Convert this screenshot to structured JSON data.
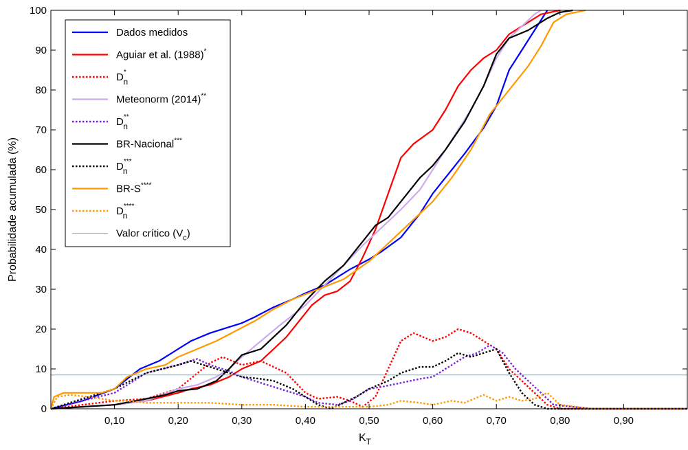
{
  "chart_data": {
    "type": "line",
    "xlabel_main": "K",
    "xlabel_sub": "T",
    "ylabel": "Probabilidade acumulada (%)",
    "xlim": [
      0,
      1
    ],
    "ylim": [
      0,
      100
    ],
    "x_ticks": [
      0.1,
      0.2,
      0.3,
      0.4,
      0.5,
      0.6,
      0.7,
      0.8,
      0.9
    ],
    "x_tick_labels": [
      "0,10",
      "0,20",
      "0,30",
      "0,40",
      "0,50",
      "0,60",
      "0,70",
      "0,80",
      "0,90"
    ],
    "y_ticks": [
      0,
      10,
      20,
      30,
      40,
      50,
      60,
      70,
      80,
      90,
      100
    ],
    "y_tick_labels": [
      "0",
      "10",
      "20",
      "30",
      "40",
      "50",
      "60",
      "70",
      "80",
      "90",
      "100"
    ],
    "grid": false,
    "legend_position": "top-left",
    "series": [
      {
        "name": "Dados medidos",
        "name_sup": "",
        "name_sub": "",
        "color": "#0000ff",
        "style": "solid",
        "x": [
          0,
          0.05,
          0.1,
          0.12,
          0.14,
          0.17,
          0.2,
          0.22,
          0.25,
          0.28,
          0.3,
          0.32,
          0.35,
          0.38,
          0.4,
          0.43,
          0.45,
          0.47,
          0.5,
          0.52,
          0.55,
          0.58,
          0.6,
          0.62,
          0.65,
          0.68,
          0.7,
          0.72,
          0.74,
          0.76,
          0.78
        ],
        "y": [
          0,
          2,
          5,
          7.5,
          10,
          12,
          15,
          17,
          19,
          20.5,
          21.5,
          23,
          25.5,
          27.5,
          29,
          31,
          33,
          35,
          37.5,
          39.5,
          43,
          49,
          54,
          58,
          64,
          70.5,
          76,
          85,
          90,
          95,
          100
        ]
      },
      {
        "name": "Aguiar et al. (1988)",
        "name_sup": "*",
        "name_sub": "",
        "color": "#ff0000",
        "style": "solid",
        "x": [
          0,
          0.1,
          0.15,
          0.2,
          0.22,
          0.25,
          0.28,
          0.3,
          0.33,
          0.35,
          0.37,
          0.39,
          0.41,
          0.43,
          0.45,
          0.47,
          0.49,
          0.51,
          0.53,
          0.55,
          0.57,
          0.6,
          0.62,
          0.64,
          0.66,
          0.68,
          0.7,
          0.72,
          0.75,
          0.77,
          0.8
        ],
        "y": [
          0,
          1,
          2,
          4,
          5,
          6,
          8,
          10,
          12,
          15,
          18,
          22,
          26,
          28.5,
          29.5,
          32,
          38,
          45,
          54,
          63,
          66.5,
          70,
          75,
          81,
          85,
          88,
          90,
          94,
          97,
          99,
          100
        ]
      },
      {
        "name": "D",
        "name_sup": "*",
        "name_sub": "n",
        "color": "#ff0000",
        "style": "dotted",
        "x": [
          0,
          0.1,
          0.15,
          0.2,
          0.25,
          0.27,
          0.3,
          0.33,
          0.35,
          0.37,
          0.4,
          0.42,
          0.45,
          0.47,
          0.49,
          0.51,
          0.53,
          0.55,
          0.57,
          0.6,
          0.62,
          0.64,
          0.66,
          0.68,
          0.7,
          0.72,
          0.74,
          0.76,
          0.78,
          0.8,
          0.85,
          1.0
        ],
        "y": [
          0,
          2,
          2.5,
          5,
          11.5,
          13,
          11,
          12,
          10.5,
          9,
          4,
          2.5,
          3,
          2,
          0.5,
          3,
          10,
          17,
          19,
          17,
          18,
          20,
          19,
          17,
          15,
          10,
          7,
          4,
          1,
          0,
          0,
          0
        ]
      },
      {
        "name": "Meteonorm (2014)",
        "name_sup": "**",
        "name_sub": "",
        "color": "#ccaaee",
        "style": "solid",
        "x": [
          0,
          0.1,
          0.15,
          0.2,
          0.23,
          0.26,
          0.28,
          0.3,
          0.33,
          0.36,
          0.4,
          0.43,
          0.46,
          0.49,
          0.51,
          0.53,
          0.55,
          0.58,
          0.6,
          0.62,
          0.64,
          0.66,
          0.68,
          0.7,
          0.72,
          0.74,
          0.76,
          0.77
        ],
        "y": [
          0,
          1,
          2,
          5,
          6,
          8,
          10,
          13,
          17,
          21,
          26,
          31,
          36,
          41,
          44,
          47,
          50,
          55,
          60,
          65,
          70,
          75,
          81,
          88,
          93,
          96,
          99,
          100
        ]
      },
      {
        "name": "D",
        "name_sup": "**",
        "name_sub": "n",
        "color": "#7722dd",
        "style": "dotted",
        "x": [
          0,
          0.1,
          0.15,
          0.2,
          0.23,
          0.25,
          0.28,
          0.3,
          0.33,
          0.35,
          0.38,
          0.4,
          0.42,
          0.45,
          0.47,
          0.5,
          0.52,
          0.55,
          0.58,
          0.6,
          0.63,
          0.65,
          0.67,
          0.69,
          0.71,
          0.73,
          0.75,
          0.77,
          0.79,
          0.85,
          1.0
        ],
        "y": [
          0,
          4,
          9,
          11,
          12.5,
          11,
          9.5,
          8,
          6.5,
          5.5,
          4,
          3,
          1.5,
          1,
          2,
          5,
          5.5,
          6.5,
          7.5,
          8,
          11,
          13,
          14,
          16,
          14,
          10,
          7,
          4,
          1,
          0,
          0
        ]
      },
      {
        "name": "BR-Nacional",
        "name_sup": "***",
        "name_sub": "",
        "color": "#000000",
        "style": "solid",
        "x": [
          0,
          0.1,
          0.15,
          0.18,
          0.2,
          0.23,
          0.26,
          0.28,
          0.3,
          0.33,
          0.35,
          0.37,
          0.4,
          0.43,
          0.46,
          0.49,
          0.51,
          0.53,
          0.55,
          0.58,
          0.6,
          0.62,
          0.65,
          0.68,
          0.7,
          0.72,
          0.75,
          0.78,
          0.8,
          0.82
        ],
        "y": [
          0,
          1,
          2.5,
          3.5,
          4.5,
          5,
          7,
          10,
          13.5,
          15,
          18,
          21,
          27,
          32,
          36,
          42,
          46,
          48,
          52,
          58,
          61,
          65,
          72,
          81,
          89,
          93,
          95,
          98,
          99.5,
          100
        ]
      },
      {
        "name": "D",
        "name_sup": "***",
        "name_sub": "n",
        "color": "#000000",
        "style": "dotted",
        "x": [
          0,
          0.1,
          0.15,
          0.2,
          0.22,
          0.24,
          0.26,
          0.28,
          0.3,
          0.33,
          0.35,
          0.38,
          0.4,
          0.42,
          0.44,
          0.46,
          0.48,
          0.5,
          0.53,
          0.55,
          0.58,
          0.6,
          0.62,
          0.64,
          0.66,
          0.68,
          0.7,
          0.72,
          0.74,
          0.76,
          0.78,
          0.8,
          1.0
        ],
        "y": [
          0,
          5,
          9,
          11,
          12,
          11,
          10,
          9,
          8,
          7.5,
          7,
          5,
          3,
          1,
          0,
          1.5,
          3,
          5,
          7,
          9,
          10.5,
          10.5,
          12,
          14,
          13,
          14,
          15,
          9,
          4,
          1,
          0,
          0,
          0
        ]
      },
      {
        "name": "BR-S",
        "name_sup": "****",
        "name_sub": "",
        "color": "#ff9900",
        "style": "solid",
        "x": [
          0,
          0.005,
          0.02,
          0.05,
          0.08,
          0.1,
          0.12,
          0.15,
          0.18,
          0.2,
          0.23,
          0.26,
          0.29,
          0.32,
          0.35,
          0.38,
          0.42,
          0.46,
          0.5,
          0.53,
          0.56,
          0.6,
          0.63,
          0.66,
          0.69,
          0.72,
          0.75,
          0.77,
          0.79,
          0.81,
          0.84
        ],
        "y": [
          0,
          3,
          4,
          4,
          4,
          5,
          8,
          10,
          11,
          13,
          15,
          17,
          19.5,
          22,
          25,
          27.5,
          30,
          32.5,
          37,
          41.5,
          46,
          52,
          58,
          65,
          74,
          80,
          86,
          91,
          97,
          99,
          100
        ]
      },
      {
        "name": "D",
        "name_sup": "****",
        "name_sub": "n",
        "color": "#ff9900",
        "style": "dotted",
        "x": [
          0,
          0.01,
          0.03,
          0.06,
          0.1,
          0.12,
          0.15,
          0.2,
          0.25,
          0.3,
          0.35,
          0.4,
          0.45,
          0.48,
          0.5,
          0.53,
          0.55,
          0.58,
          0.6,
          0.63,
          0.65,
          0.68,
          0.7,
          0.72,
          0.74,
          0.76,
          0.78,
          0.8,
          0.85,
          1.0
        ],
        "y": [
          0,
          3,
          3.5,
          3,
          2,
          2,
          1.5,
          1.5,
          1.5,
          1,
          1,
          0.5,
          0.5,
          0.5,
          0.5,
          1,
          2,
          1.5,
          1,
          2,
          1.5,
          3.5,
          2,
          3,
          2,
          2.5,
          4,
          1,
          0,
          0
        ]
      },
      {
        "name": "Valor crítico (V",
        "name_sup": "",
        "name_sub": "c",
        "name_suffix": ")",
        "color": "#66bbcc",
        "style": "thin",
        "x": [
          0,
          1.0
        ],
        "y": [
          8.5,
          8.5
        ]
      }
    ]
  }
}
